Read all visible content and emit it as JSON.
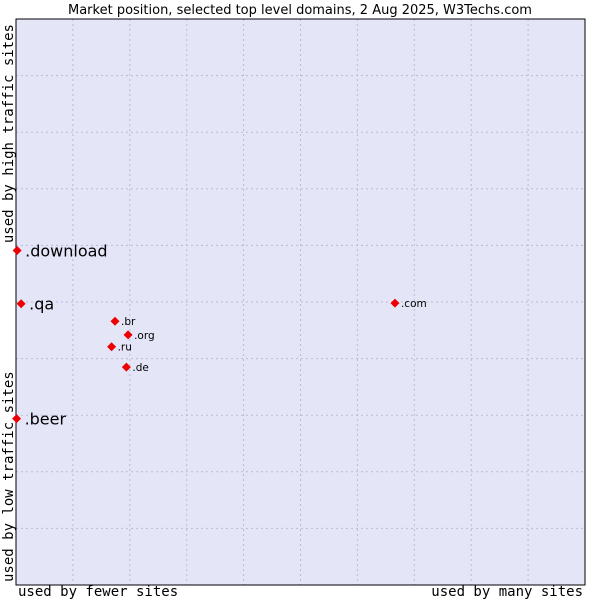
{
  "chart_data": {
    "type": "scatter",
    "title": "Market position, selected top level domains, 2 Aug 2025, W3Techs.com",
    "xlabel_left": "used by fewer sites",
    "xlabel_right": "used by many sites",
    "ylabel_top": "used by high traffic sites",
    "ylabel_bottom": "used by low traffic sites",
    "xlim": [
      0,
      100
    ],
    "ylim": [
      0,
      100
    ],
    "grid": true,
    "colors": {
      "plot_bg": "#e4e6f8",
      "grid": "#b9bbd6",
      "marker": "#ee0000",
      "border": "#000000"
    },
    "points": [
      {
        "label": ".download",
        "x": 0.2,
        "y": 59.1,
        "emphasis": true
      },
      {
        "label": ".qa",
        "x": 0.9,
        "y": 49.7,
        "emphasis": true
      },
      {
        "label": ".beer",
        "x": 0.1,
        "y": 29.4,
        "emphasis": true
      },
      {
        "label": ".com",
        "x": 66.6,
        "y": 49.8,
        "emphasis": false
      },
      {
        "label": ".br",
        "x": 17.4,
        "y": 46.6,
        "emphasis": false
      },
      {
        "label": ".org",
        "x": 19.7,
        "y": 44.2,
        "emphasis": false
      },
      {
        "label": ".ru",
        "x": 16.8,
        "y": 42.1,
        "emphasis": false
      },
      {
        "label": ".de",
        "x": 19.4,
        "y": 38.5,
        "emphasis": false
      }
    ]
  }
}
